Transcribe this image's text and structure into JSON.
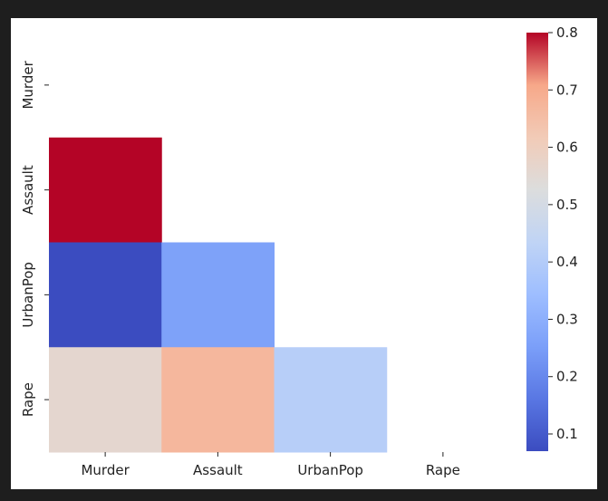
{
  "chart_data": {
    "type": "heatmap",
    "title": "",
    "xlabel": "",
    "ylabel": "",
    "x_labels": [
      "Murder",
      "Assault",
      "UrbanPop",
      "Rape"
    ],
    "y_labels": [
      "Murder",
      "Assault",
      "UrbanPop",
      "Rape"
    ],
    "mask": "upper-triangle-including-diagonal",
    "cells": [
      {
        "row": "Assault",
        "col": "Murder",
        "value": 0.8
      },
      {
        "row": "UrbanPop",
        "col": "Murder",
        "value": 0.07
      },
      {
        "row": "UrbanPop",
        "col": "Assault",
        "value": 0.26
      },
      {
        "row": "Rape",
        "col": "Murder",
        "value": 0.56
      },
      {
        "row": "Rape",
        "col": "Assault",
        "value": 0.67
      },
      {
        "row": "Rape",
        "col": "UrbanPop",
        "value": 0.41
      }
    ],
    "colormap": "coolwarm",
    "colorbar": {
      "range": [
        0.07,
        0.8
      ],
      "ticks": [
        0.1,
        0.2,
        0.3,
        0.4,
        0.5,
        0.6,
        0.7,
        0.8
      ],
      "tick_labels": [
        "0.1",
        "0.2",
        "0.3",
        "0.4",
        "0.5",
        "0.6",
        "0.7",
        "0.8"
      ],
      "placement": "right"
    }
  }
}
